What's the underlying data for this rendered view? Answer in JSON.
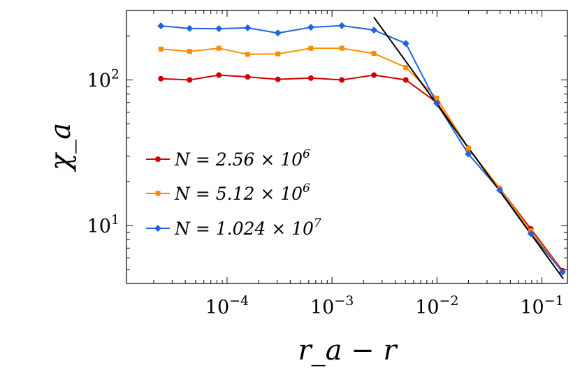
{
  "chart_data": {
    "type": "line",
    "xscale": "log",
    "yscale": "log",
    "xlabel": "r_a − r",
    "ylabel": "χ_a",
    "xlim": [
      1.1e-05,
      0.175
    ],
    "ylim": [
      4.0,
      300
    ],
    "x_ticks": [
      {
        "value": 0.0001,
        "base": "10",
        "exp": "−4"
      },
      {
        "value": 0.001,
        "base": "10",
        "exp": "−3"
      },
      {
        "value": 0.01,
        "base": "10",
        "exp": "−2"
      },
      {
        "value": 0.1,
        "base": "10",
        "exp": "−1"
      }
    ],
    "y_ticks": [
      {
        "value": 10,
        "base": "10",
        "exp": "1"
      },
      {
        "value": 100,
        "base": "10",
        "exp": "2"
      }
    ],
    "x": [
      2.34e-05,
      4.39e-05,
      8.35e-05,
      0.000157,
      0.000305,
      0.000629,
      0.00124,
      0.00251,
      0.00505,
      0.00997,
      0.0199,
      0.0396,
      0.0784,
      0.157
    ],
    "series": [
      {
        "name": "N = 2.56 × 10^6",
        "label_pre": "N = 2.56 × 10",
        "label_exp": "6",
        "color": "#d00000",
        "marker": "circle",
        "values": [
          102,
          100,
          108,
          105,
          101,
          103,
          100,
          108,
          100,
          70,
          34,
          18,
          9.5,
          4.9
        ]
      },
      {
        "name": "N = 5.12 × 10^6",
        "label_pre": "N = 5.12 × 10",
        "label_exp": "6",
        "color": "#ff8c00",
        "marker": "square",
        "values": [
          163,
          157,
          165,
          150,
          151,
          165,
          165,
          152,
          122,
          75,
          34,
          18,
          9.2,
          4.8
        ]
      },
      {
        "name": "N = 1.024 × 10^7",
        "label_pre": "N = 1.024 × 10",
        "label_exp": "7",
        "color": "#1e64dc",
        "marker": "diamond",
        "values": [
          235,
          226,
          225,
          228,
          210,
          230,
          236,
          220,
          178,
          69,
          31,
          17.5,
          8.8,
          4.8
        ]
      }
    ],
    "fit_line": {
      "color": "#000000",
      "x": [
        0.0025,
        0.16
      ],
      "y": [
        270,
        4.3
      ]
    },
    "legend_position": "left-middle",
    "grid": false
  }
}
